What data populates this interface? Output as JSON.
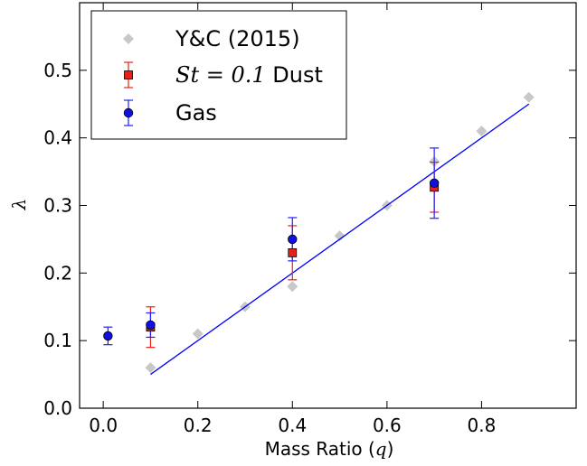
{
  "chart_data": {
    "type": "scatter",
    "title": "",
    "xlabel": "Mass Ratio (",
    "xlabel_math": "q",
    "xlabel_close": ")",
    "ylabel": "λ",
    "xlim": [
      -0.05,
      1.0
    ],
    "ylim": [
      0.0,
      0.6
    ],
    "xticks": [
      0.0,
      0.2,
      0.4,
      0.6,
      0.8
    ],
    "xtick_labels": [
      "0.0",
      "0.2",
      "0.4",
      "0.6",
      "0.8"
    ],
    "yticks": [
      0.0,
      0.1,
      0.2,
      0.3,
      0.4,
      0.5
    ],
    "ytick_labels": [
      "0.0",
      "0.1",
      "0.2",
      "0.3",
      "0.4",
      "0.5"
    ],
    "grid": false,
    "legend_position": "top-left",
    "series": [
      {
        "name": "Y&C (2015)",
        "marker": "diamond",
        "color": "#c8c8c8",
        "x": [
          0.1,
          0.2,
          0.3,
          0.4,
          0.5,
          0.6,
          0.7,
          0.8,
          0.9
        ],
        "y": [
          0.06,
          0.11,
          0.15,
          0.18,
          0.255,
          0.3,
          0.365,
          0.41,
          0.46
        ]
      },
      {
        "name_math": "St",
        "name_mid": " = 0.1",
        "name_tail": " Dust",
        "marker": "square",
        "color": "#e8201c",
        "errcolor": "#e8201c",
        "x": [
          0.1,
          0.4,
          0.7
        ],
        "y": [
          0.12,
          0.23,
          0.327
        ],
        "yerr": [
          0.03,
          0.04,
          0.037
        ]
      },
      {
        "name": "Gas",
        "marker": "circle",
        "color": "#1010e0",
        "errcolor": "#2020ff",
        "x": [
          0.01,
          0.1,
          0.4,
          0.7
        ],
        "y": [
          0.107,
          0.123,
          0.25,
          0.333
        ],
        "yerr": [
          0.013,
          0.018,
          0.032,
          0.052
        ]
      }
    ],
    "fit_line": {
      "color": "#0000ff",
      "x": [
        0.1,
        0.9
      ],
      "y": [
        0.05,
        0.45
      ]
    }
  }
}
